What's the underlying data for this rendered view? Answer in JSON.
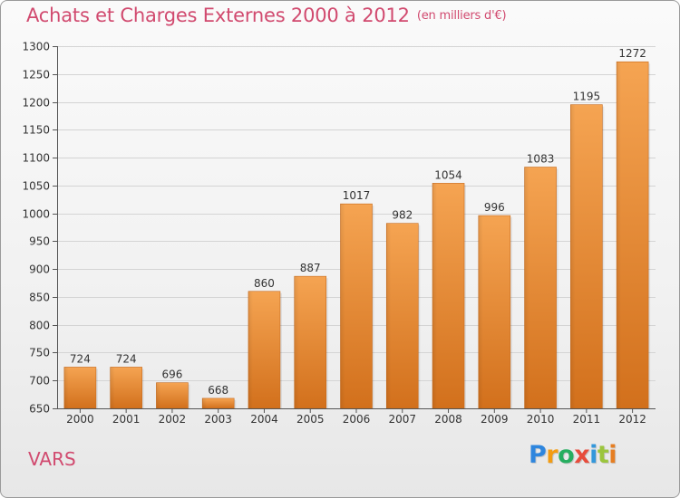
{
  "header": {
    "title": "Achats et Charges Externes 2000 à 2012",
    "unit": "(en milliers d'€)"
  },
  "commune": "VARS",
  "logo": {
    "letters": [
      {
        "char": "P",
        "color": "#2e86de"
      },
      {
        "char": "r",
        "color": "#f39c12"
      },
      {
        "char": "o",
        "color": "#27ae60"
      },
      {
        "char": "x",
        "color": "#e74c3c"
      },
      {
        "char": "i",
        "color": "#3498db"
      },
      {
        "char": "t",
        "color": "#9bc53d"
      },
      {
        "char": "i",
        "color": "#e67e22"
      }
    ]
  },
  "chart_data": {
    "type": "bar",
    "title": "Achats et Charges Externes 2000 à 2012",
    "subtitle": "(en milliers d'€)",
    "xlabel": "",
    "ylabel": "",
    "categories": [
      "2000",
      "2001",
      "2002",
      "2003",
      "2004",
      "2005",
      "2006",
      "2007",
      "2008",
      "2009",
      "2010",
      "2011",
      "2012"
    ],
    "values": [
      724,
      724,
      696,
      668,
      860,
      887,
      1017,
      982,
      1054,
      996,
      1083,
      1195,
      1272
    ],
    "ylim": [
      650,
      1300
    ],
    "yticks": [
      650,
      700,
      750,
      800,
      850,
      900,
      950,
      1000,
      1050,
      1100,
      1150,
      1200,
      1250,
      1300
    ],
    "grid": true,
    "bar_color": "#f0a04b",
    "bar_color_dark": "#d2701c"
  }
}
